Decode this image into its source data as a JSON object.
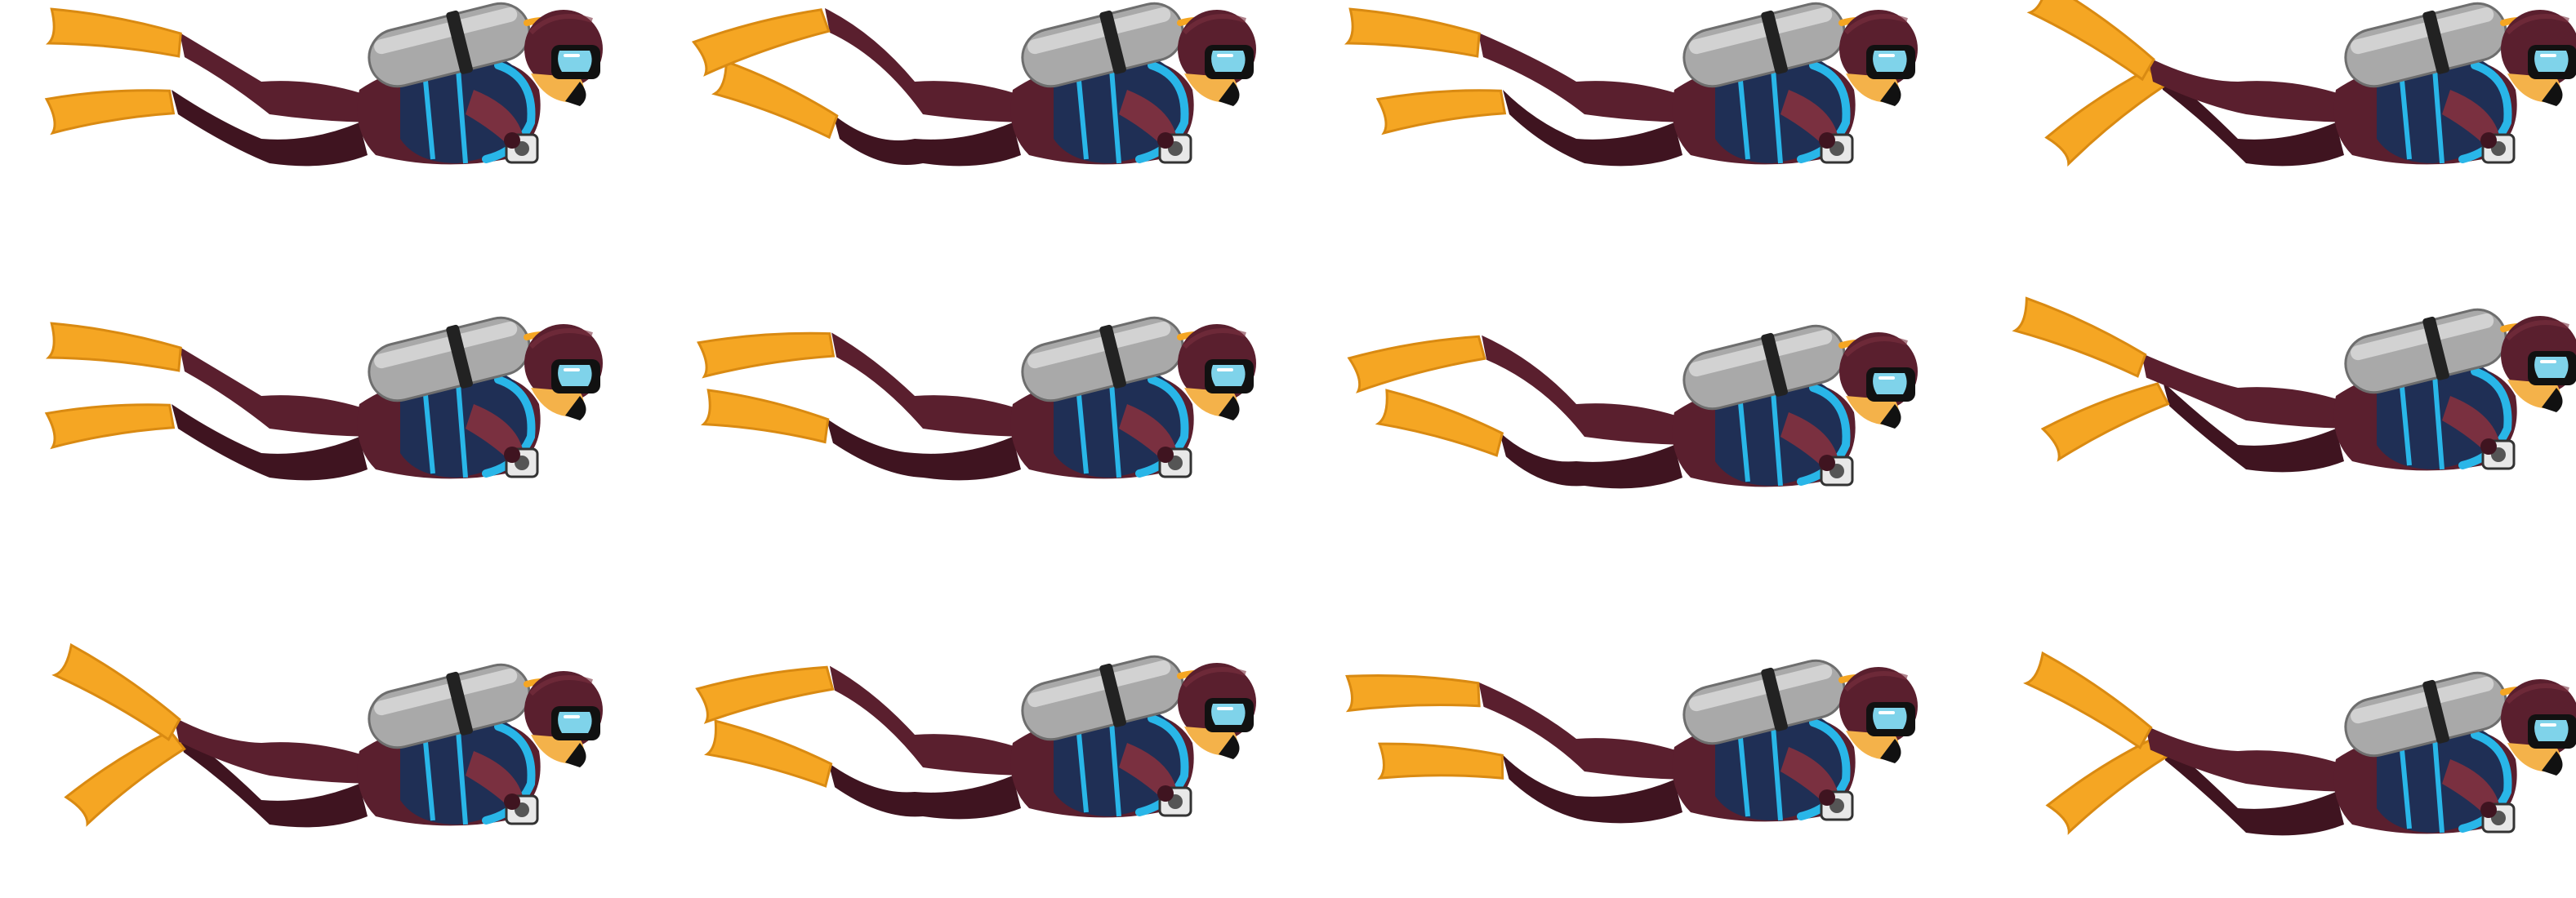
{
  "sprite_sheet": {
    "subject": "scuba-diver",
    "rows": 3,
    "columns": 4,
    "background_color": "#ffffff",
    "colors": {
      "suit": "#5a1f2e",
      "suit_dark": "#3f1420",
      "suit_light": "#7a3040",
      "vest": "#1f2f55",
      "vest_trim": "#29b6e8",
      "tank": "#a9a9a9",
      "tank_light": "#dcdcdc",
      "tank_dark": "#6e6e6e",
      "fins": "#f5a623",
      "fins_dark": "#d98a12",
      "mask_frame": "#111111",
      "mask_lens": "#7fd3ea",
      "skin": "#f4b24a",
      "strap": "#222222",
      "camera": "#e8e8e8"
    },
    "frames": [
      {
        "id": "frame-1",
        "kick_phase": 0.0
      },
      {
        "id": "frame-2",
        "kick_phase": 0.25
      },
      {
        "id": "frame-3",
        "kick_phase": 0.5
      },
      {
        "id": "frame-4",
        "kick_phase": 0.75
      },
      {
        "id": "frame-5",
        "kick_phase": 1.0
      },
      {
        "id": "frame-6",
        "kick_phase": 0.1
      },
      {
        "id": "frame-7",
        "kick_phase": 0.35
      },
      {
        "id": "frame-8",
        "kick_phase": 0.6
      },
      {
        "id": "frame-9",
        "kick_phase": 0.8
      },
      {
        "id": "frame-10",
        "kick_phase": 0.15
      },
      {
        "id": "frame-11",
        "kick_phase": 0.45
      },
      {
        "id": "frame-12",
        "kick_phase": 0.7
      }
    ]
  }
}
